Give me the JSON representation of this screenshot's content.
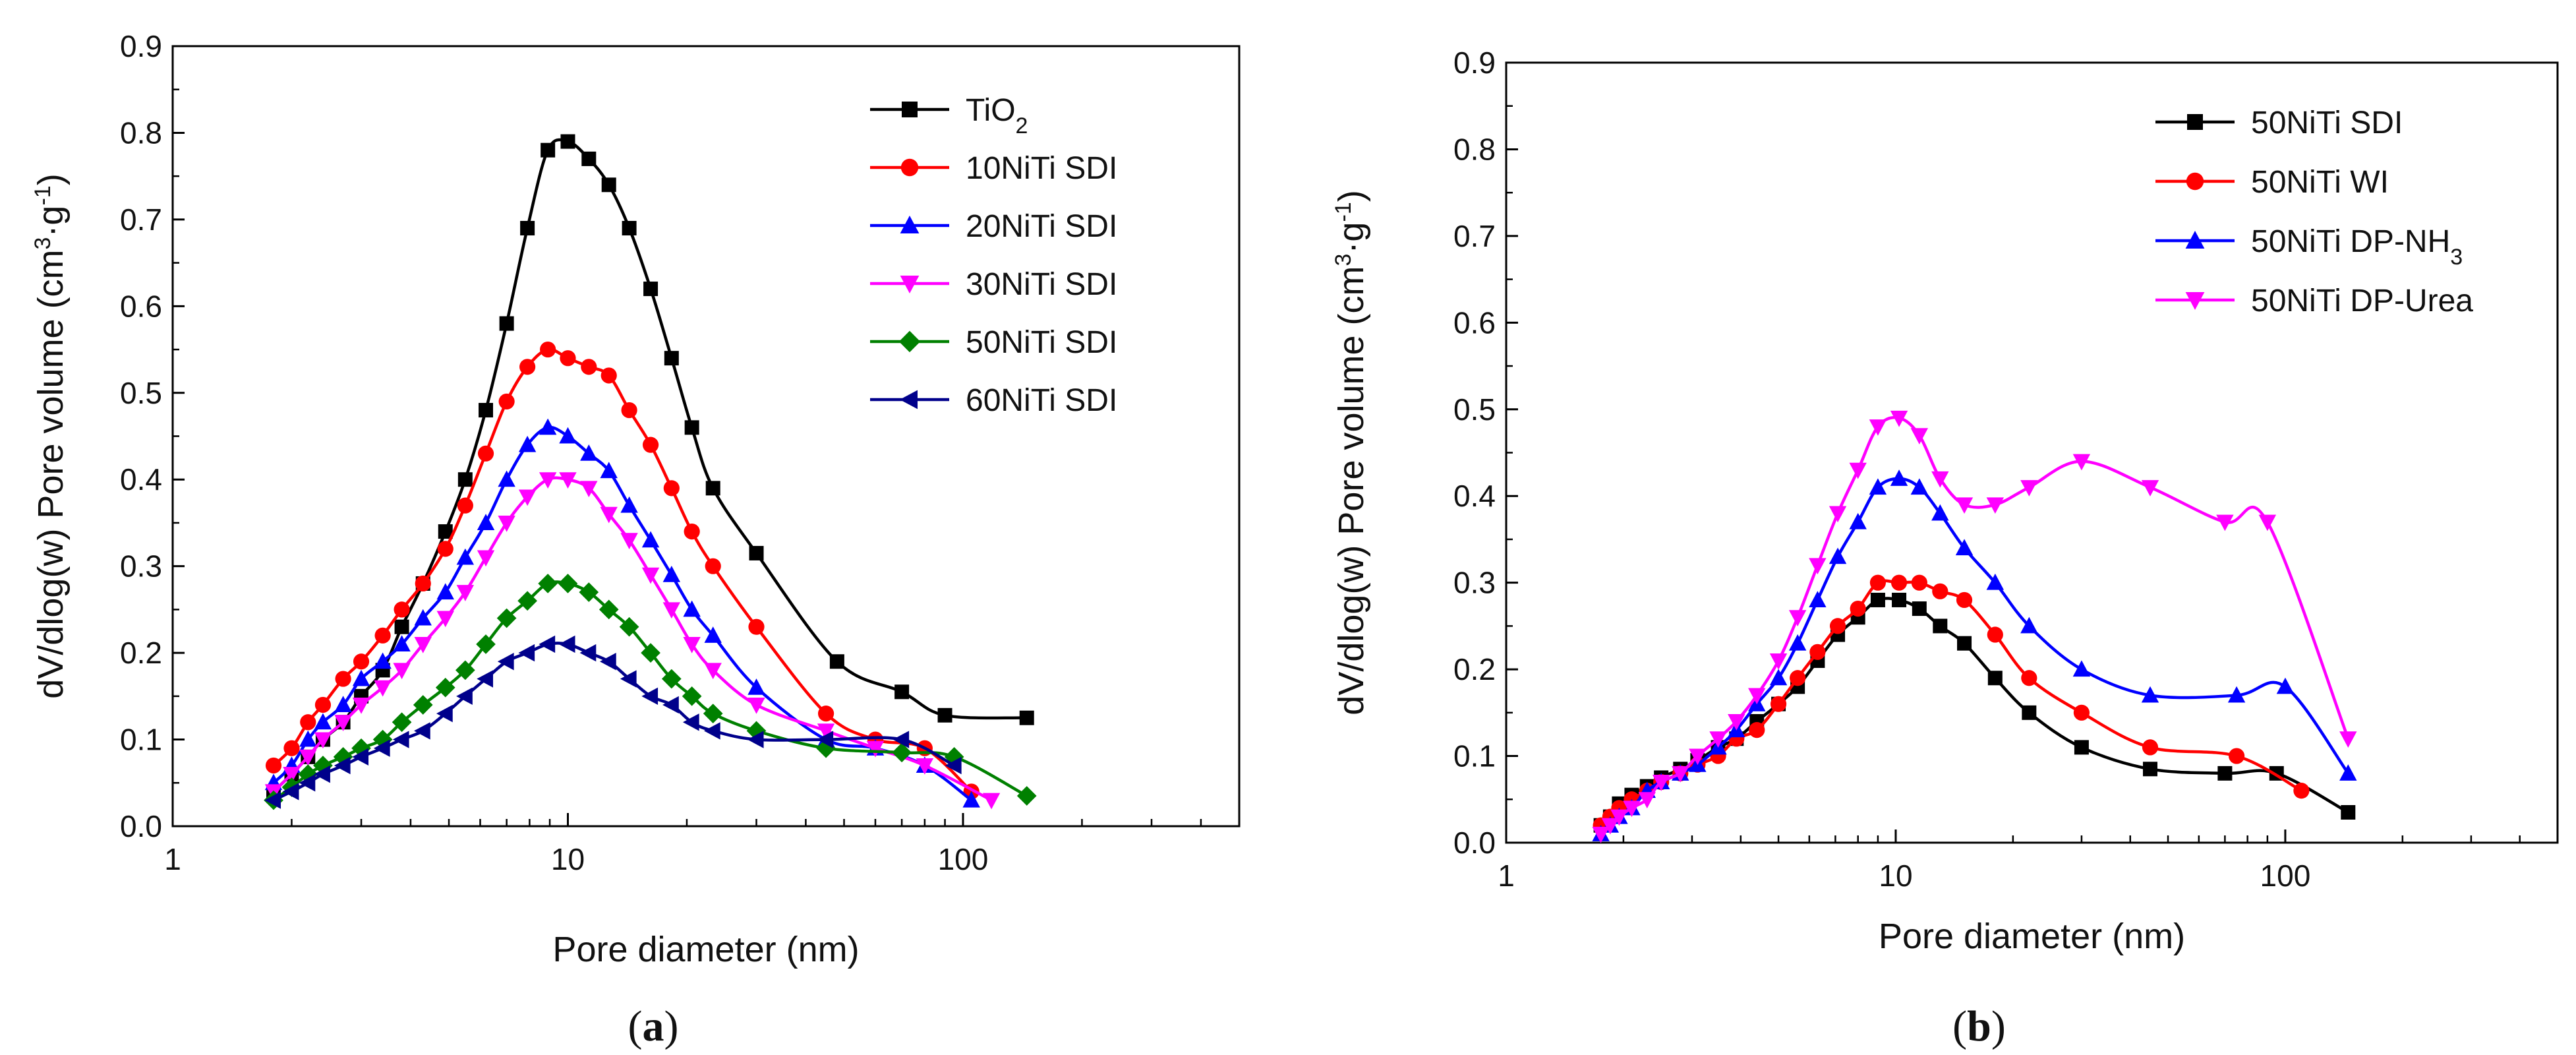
{
  "chart_data": [
    {
      "type": "line",
      "panel_label": "(a)",
      "panel_letter": "a",
      "xscale": "log",
      "xlim": [
        1,
        500
      ],
      "ylim": [
        0,
        0.9
      ],
      "xlabel": "Pore diameter (nm)",
      "ylabel_parts": [
        "dV/dlog(w) Pore volume (cm",
        "3",
        "·g",
        "-1",
        ")"
      ],
      "x_ticks": [
        {
          "value": 1,
          "label": "1"
        },
        {
          "value": 10,
          "label": "10"
        },
        {
          "value": 100,
          "label": "100"
        }
      ],
      "y_ticks": [
        "0.0",
        "0.1",
        "0.2",
        "0.3",
        "0.4",
        "0.5",
        "0.6",
        "0.7",
        "0.8",
        "0.9"
      ],
      "legend_position": "top-right",
      "series": [
        {
          "name": "TiO2",
          "label_main": "TiO",
          "label_sub": "2",
          "color": "#000000",
          "marker": "square",
          "x": [
            1.8,
            2.0,
            2.2,
            2.4,
            2.7,
            3.0,
            3.4,
            3.8,
            4.3,
            4.9,
            5.5,
            6.2,
            7.0,
            7.9,
            8.9,
            10.0,
            11.3,
            12.7,
            14.3,
            16.2,
            18.3,
            20.6,
            23.3,
            30,
            48,
            70,
            90,
            145
          ],
          "y": [
            0.04,
            0.06,
            0.08,
            0.1,
            0.12,
            0.15,
            0.18,
            0.23,
            0.28,
            0.34,
            0.4,
            0.48,
            0.58,
            0.69,
            0.78,
            0.79,
            0.77,
            0.74,
            0.69,
            0.62,
            0.54,
            0.46,
            0.39,
            0.315,
            0.19,
            0.155,
            0.128,
            0.125
          ]
        },
        {
          "name": "10NiTi SDI",
          "label_main": "10NiTi SDI",
          "label_sub": "",
          "color": "#ff0000",
          "marker": "circle",
          "x": [
            1.8,
            2.0,
            2.2,
            2.4,
            2.7,
            3.0,
            3.4,
            3.8,
            4.3,
            4.9,
            5.5,
            6.2,
            7.0,
            7.9,
            8.9,
            10.0,
            11.3,
            12.7,
            14.3,
            16.2,
            18.3,
            20.6,
            23.3,
            30,
            45,
            60,
            80,
            105
          ],
          "y": [
            0.07,
            0.09,
            0.12,
            0.14,
            0.17,
            0.19,
            0.22,
            0.25,
            0.28,
            0.32,
            0.37,
            0.43,
            0.49,
            0.53,
            0.55,
            0.54,
            0.53,
            0.52,
            0.48,
            0.44,
            0.39,
            0.34,
            0.3,
            0.23,
            0.13,
            0.1,
            0.09,
            0.04
          ]
        },
        {
          "name": "20NiTi SDI",
          "label_main": "20NiTi SDI",
          "label_sub": "",
          "color": "#0000ff",
          "marker": "triangle-up",
          "x": [
            1.8,
            2.0,
            2.2,
            2.4,
            2.7,
            3.0,
            3.4,
            3.8,
            4.3,
            4.9,
            5.5,
            6.2,
            7.0,
            7.9,
            8.9,
            10.0,
            11.3,
            12.7,
            14.3,
            16.2,
            18.3,
            20.6,
            23.3,
            30,
            45,
            60,
            80,
            105
          ],
          "y": [
            0.05,
            0.07,
            0.1,
            0.12,
            0.14,
            0.17,
            0.19,
            0.21,
            0.24,
            0.27,
            0.31,
            0.35,
            0.4,
            0.44,
            0.46,
            0.45,
            0.43,
            0.41,
            0.37,
            0.33,
            0.29,
            0.25,
            0.22,
            0.16,
            0.1,
            0.09,
            0.07,
            0.03
          ]
        },
        {
          "name": "30NiTi SDI",
          "label_main": "30NiTi SDI",
          "label_sub": "",
          "color": "#ff00ff",
          "marker": "triangle-down",
          "x": [
            1.8,
            2.0,
            2.2,
            2.4,
            2.7,
            3.0,
            3.4,
            3.8,
            4.3,
            4.9,
            5.5,
            6.2,
            7.0,
            7.9,
            8.9,
            10.0,
            11.3,
            12.7,
            14.3,
            16.2,
            18.3,
            20.6,
            23.3,
            30,
            45,
            60,
            80,
            118
          ],
          "y": [
            0.04,
            0.06,
            0.08,
            0.1,
            0.12,
            0.14,
            0.16,
            0.18,
            0.21,
            0.24,
            0.27,
            0.31,
            0.35,
            0.38,
            0.4,
            0.4,
            0.39,
            0.36,
            0.33,
            0.29,
            0.25,
            0.21,
            0.18,
            0.14,
            0.11,
            0.09,
            0.07,
            0.03
          ]
        },
        {
          "name": "50NiTi SDI",
          "label_main": "50NiTi SDI",
          "label_sub": "",
          "color": "#008000",
          "marker": "diamond",
          "x": [
            1.8,
            2.0,
            2.2,
            2.4,
            2.7,
            3.0,
            3.4,
            3.8,
            4.3,
            4.9,
            5.5,
            6.2,
            7.0,
            7.9,
            8.9,
            10.0,
            11.3,
            12.7,
            14.3,
            16.2,
            18.3,
            20.6,
            23.3,
            30,
            45,
            70,
            95,
            145
          ],
          "y": [
            0.03,
            0.045,
            0.06,
            0.07,
            0.08,
            0.09,
            0.1,
            0.12,
            0.14,
            0.16,
            0.18,
            0.21,
            0.24,
            0.26,
            0.28,
            0.28,
            0.27,
            0.25,
            0.23,
            0.2,
            0.17,
            0.15,
            0.13,
            0.11,
            0.09,
            0.085,
            0.08,
            0.035
          ]
        },
        {
          "name": "60NiTi SDI",
          "label_main": "60NiTi SDI",
          "label_sub": "",
          "color": "#00008b",
          "marker": "triangle-left",
          "x": [
            1.8,
            2.0,
            2.2,
            2.4,
            2.7,
            3.0,
            3.4,
            3.8,
            4.3,
            4.9,
            5.5,
            6.2,
            7.0,
            7.9,
            8.9,
            10.0,
            11.3,
            12.7,
            14.3,
            16.2,
            18.3,
            20.6,
            23.3,
            30,
            45,
            70,
            95
          ],
          "y": [
            0.03,
            0.04,
            0.05,
            0.06,
            0.07,
            0.08,
            0.09,
            0.1,
            0.11,
            0.13,
            0.15,
            0.17,
            0.19,
            0.2,
            0.21,
            0.21,
            0.2,
            0.19,
            0.17,
            0.15,
            0.14,
            0.12,
            0.11,
            0.1,
            0.1,
            0.1,
            0.07
          ]
        }
      ]
    },
    {
      "type": "line",
      "panel_label": "(b)",
      "panel_letter": "b",
      "xscale": "log",
      "xlim": [
        1,
        500
      ],
      "ylim": [
        0,
        0.9
      ],
      "xlabel": "Pore diameter (nm)",
      "ylabel_parts": [
        "dV/dlog(w) Pore volume (cm",
        "3",
        "·g",
        "-1",
        ")"
      ],
      "x_ticks": [
        {
          "value": 1,
          "label": "1"
        },
        {
          "value": 10,
          "label": "10"
        },
        {
          "value": 100,
          "label": "100"
        }
      ],
      "y_ticks": [
        "0.0",
        "0.1",
        "0.2",
        "0.3",
        "0.4",
        "0.5",
        "0.6",
        "0.7",
        "0.8",
        "0.9"
      ],
      "legend_position": "top-right",
      "series": [
        {
          "name": "50NiTi SDI",
          "label_main": "50NiTi SDI",
          "label_sub": "",
          "color": "#000000",
          "marker": "square",
          "x": [
            1.75,
            1.85,
            1.95,
            2.1,
            2.3,
            2.5,
            2.8,
            3.1,
            3.5,
            3.9,
            4.4,
            5.0,
            5.6,
            6.3,
            7.1,
            8.0,
            9.0,
            10.2,
            11.5,
            13.0,
            15.0,
            18.0,
            22.0,
            30,
            45,
            70,
            95,
            145
          ],
          "y": [
            0.02,
            0.03,
            0.045,
            0.055,
            0.065,
            0.075,
            0.085,
            0.095,
            0.11,
            0.12,
            0.14,
            0.16,
            0.18,
            0.21,
            0.24,
            0.26,
            0.28,
            0.28,
            0.27,
            0.25,
            0.23,
            0.19,
            0.15,
            0.11,
            0.085,
            0.08,
            0.08,
            0.035
          ]
        },
        {
          "name": "50NiTi WI",
          "label_main": "50NiTi WI",
          "label_sub": "",
          "color": "#ff0000",
          "marker": "circle",
          "x": [
            1.75,
            1.85,
            1.95,
            2.1,
            2.3,
            2.5,
            2.8,
            3.1,
            3.5,
            3.9,
            4.4,
            5.0,
            5.6,
            6.3,
            7.1,
            8.0,
            9.0,
            10.2,
            11.5,
            13.0,
            15.0,
            18.0,
            22.0,
            30,
            45,
            75,
            110
          ],
          "y": [
            0.02,
            0.03,
            0.04,
            0.05,
            0.06,
            0.07,
            0.08,
            0.09,
            0.1,
            0.12,
            0.13,
            0.16,
            0.19,
            0.22,
            0.25,
            0.27,
            0.3,
            0.3,
            0.3,
            0.29,
            0.28,
            0.24,
            0.19,
            0.15,
            0.11,
            0.1,
            0.06
          ]
        },
        {
          "name": "50NiTi DP-NH3",
          "label_main": "50NiTi DP-NH",
          "label_sub": "3",
          "color": "#0000ff",
          "marker": "triangle-up",
          "x": [
            1.75,
            1.85,
            1.95,
            2.1,
            2.3,
            2.5,
            2.8,
            3.1,
            3.5,
            3.9,
            4.4,
            5.0,
            5.6,
            6.3,
            7.1,
            8.0,
            9.0,
            10.2,
            11.5,
            13.0,
            15.0,
            18.0,
            22.0,
            30,
            45,
            75,
            100,
            145
          ],
          "y": [
            0.01,
            0.02,
            0.03,
            0.04,
            0.06,
            0.07,
            0.08,
            0.09,
            0.11,
            0.13,
            0.16,
            0.19,
            0.23,
            0.28,
            0.33,
            0.37,
            0.41,
            0.42,
            0.41,
            0.38,
            0.34,
            0.3,
            0.25,
            0.2,
            0.17,
            0.17,
            0.18,
            0.08
          ]
        },
        {
          "name": "50NiTi DP-Urea",
          "label_main": "50NiTi DP-Urea",
          "label_sub": "",
          "color": "#ff00ff",
          "marker": "triangle-down",
          "x": [
            1.75,
            1.85,
            1.95,
            2.1,
            2.3,
            2.5,
            2.8,
            3.1,
            3.5,
            3.9,
            4.4,
            5.0,
            5.6,
            6.3,
            7.1,
            8.0,
            9.0,
            10.2,
            11.5,
            13.0,
            15.0,
            18.0,
            22.0,
            30,
            45,
            70,
            90,
            145
          ],
          "y": [
            0.01,
            0.02,
            0.03,
            0.04,
            0.05,
            0.07,
            0.08,
            0.1,
            0.12,
            0.14,
            0.17,
            0.21,
            0.26,
            0.32,
            0.38,
            0.43,
            0.48,
            0.49,
            0.47,
            0.42,
            0.39,
            0.39,
            0.41,
            0.44,
            0.41,
            0.37,
            0.37,
            0.12
          ]
        }
      ]
    }
  ]
}
